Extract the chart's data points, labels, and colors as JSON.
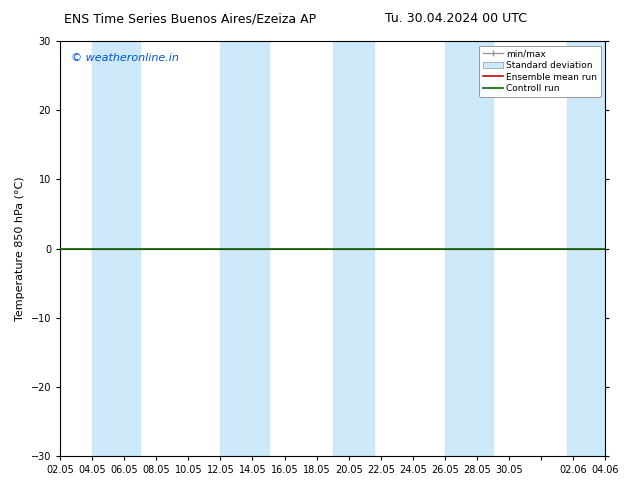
{
  "title_left": "ENS Time Series Buenos Aires/Ezeiza AP",
  "title_right": "Tu. 30.04.2024 00 UTC",
  "ylabel": "Temperature 850 hPa (°C)",
  "ylim": [
    -30,
    30
  ],
  "yticks": [
    -30,
    -20,
    -10,
    0,
    10,
    20,
    30
  ],
  "x_tick_labels": [
    "02.05",
    "04.05",
    "06.05",
    "08.05",
    "10.05",
    "12.05",
    "14.05",
    "16.05",
    "18.05",
    "20.05",
    "22.05",
    "24.05",
    "26.05",
    "28.05",
    "30.05",
    "",
    "02.06",
    "04.06"
  ],
  "watermark": "© weatheronline.in",
  "watermark_color": "#0055cc",
  "bg_color": "#ffffff",
  "shaded_band_color": "#cde8f8",
  "control_run_color": "#006600",
  "ensemble_mean_color": "#cc0000",
  "control_run_value": 0.0,
  "ensemble_mean_value": 0.0,
  "legend_labels": [
    "min/max",
    "Standard deviation",
    "Ensemble mean run",
    "Controll run"
  ],
  "legend_colors_lines": [
    "#999999",
    "#aaccee",
    "#cc0000",
    "#006600"
  ],
  "title_fontsize": 9,
  "ylabel_fontsize": 8,
  "tick_fontsize": 7,
  "watermark_fontsize": 8
}
